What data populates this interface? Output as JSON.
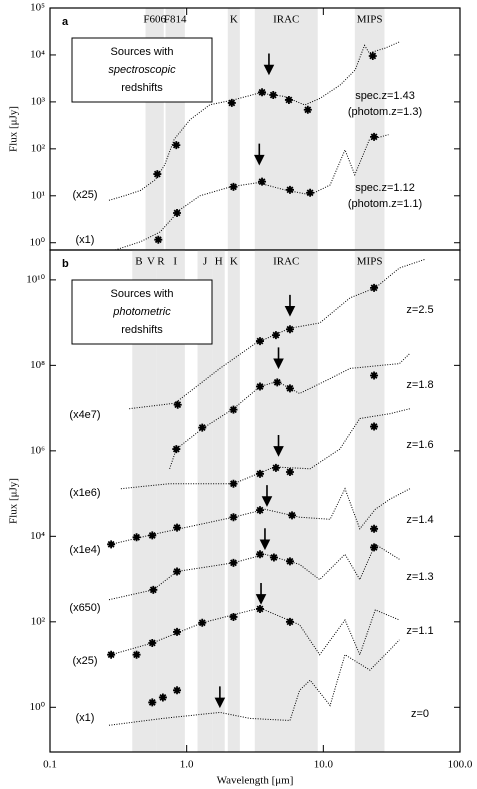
{
  "chart_data": [
    {
      "type": "line",
      "panel_label": "a",
      "box_text": [
        "Sources with",
        "spectroscopic",
        "redshifts"
      ],
      "log_x": true,
      "log_y": true,
      "xlim": [
        0.1,
        100
      ],
      "ylim": [
        0.7,
        100000
      ],
      "yticks": [
        {
          "value": 1,
          "label": "10⁰"
        },
        {
          "value": 10,
          "label": "10¹"
        },
        {
          "value": 100,
          "label": "10²"
        },
        {
          "value": 1000,
          "label": "10³"
        },
        {
          "value": 10000,
          "label": "10⁴"
        },
        {
          "value": 100000,
          "label": "10⁵"
        }
      ],
      "ylabel": "Flux [μJy]",
      "bands": [
        {
          "label": "F606",
          "range": [
            0.5,
            0.68
          ]
        },
        {
          "label": "F814",
          "range": [
            0.7,
            0.97
          ]
        },
        {
          "label": "K",
          "range": [
            2.0,
            2.45
          ]
        },
        {
          "label": "IRAC",
          "range": [
            3.15,
            9.1
          ]
        },
        {
          "label": "MIPS",
          "range": [
            17,
            28
          ]
        }
      ],
      "sources": [
        {
          "label": [
            "spec.z=1.43",
            "(photom.z=1.3)"
          ],
          "scale_label": "(x25)",
          "x": [
            0.61,
            0.84,
            2.14,
            3.56,
            4.3,
            5.6,
            7.7,
            23
          ],
          "y": [
            29,
            120,
            950,
            1600,
            1400,
            1100,
            680,
            9500
          ],
          "curve_x": [
            0.27,
            0.35,
            0.46,
            0.59,
            0.69,
            0.81,
            1.06,
            1.48,
            2.2,
            3.4,
            5.2,
            7.3,
            9.5,
            13.3,
            17.1,
            20,
            21.7,
            28.3,
            36
          ],
          "curve_y": [
            8,
            10,
            13,
            22,
            45,
            160,
            420,
            870,
            1100,
            1550,
            1300,
            860,
            1200,
            2300,
            4800,
            16000,
            11000,
            14000,
            19000
          ],
          "arrow": {
            "x": 4.0,
            "y": 3000
          }
        },
        {
          "label": [
            "spec.z=1.12",
            "(photom.z=1.1)"
          ],
          "scale_label": "(x1)",
          "x": [
            0.62,
            0.85,
            2.2,
            3.56,
            5.7,
            8.0,
            23.5
          ],
          "y": [
            1.16,
            4.3,
            15.5,
            20,
            13.4,
            11.6,
            180
          ],
          "curve_x": [
            0.3,
            0.46,
            0.64,
            0.89,
            1.25,
            2.1,
            3.3,
            5.2,
            8,
            11.2,
            14.4,
            17,
            21.7,
            30
          ],
          "curve_y": [
            0.7,
            1.05,
            1.7,
            5,
            10,
            15.5,
            19,
            13.4,
            10.5,
            17,
            95,
            28,
            155,
            200
          ],
          "arrow": {
            "x": 3.4,
            "y": 36
          }
        }
      ]
    },
    {
      "type": "line",
      "panel_label": "b",
      "box_text": [
        "Sources with",
        "photometric",
        "redshifts"
      ],
      "log_x": true,
      "log_y": true,
      "xlim": [
        0.1,
        100
      ],
      "ylim": [
        0.09,
        50000000000
      ],
      "xticks": [
        0.1,
        {
          "value": 1,
          "label": "1.0"
        },
        {
          "value": 10,
          "label": "10.0"
        },
        {
          "value": 100,
          "label": "100.0"
        }
      ],
      "yticks": [
        {
          "value": 1,
          "label": "10⁰"
        },
        {
          "value": 100,
          "label": "10²"
        },
        {
          "value": 10000,
          "label": "10⁴"
        },
        {
          "value": 1000000,
          "label": "10⁶"
        },
        {
          "value": 100000000,
          "label": "10⁸"
        },
        {
          "value": 10000000000,
          "label": "10¹⁰"
        }
      ],
      "ylabel": "Flux [μJy]",
      "xlabel": "Wavelength [μm]",
      "bands": [
        {
          "label": "B",
          "range": [
            0.4,
            0.5
          ]
        },
        {
          "label": "V",
          "range": [
            0.5,
            0.6
          ]
        },
        {
          "label": "R",
          "range": [
            0.6,
            0.7
          ]
        },
        {
          "label": "I",
          "range": [
            0.7,
            0.97
          ]
        },
        {
          "label": "J",
          "range": [
            1.2,
            1.55
          ]
        },
        {
          "label": "H",
          "range": [
            1.55,
            1.9
          ]
        },
        {
          "label": "K",
          "range": [
            2.0,
            2.45
          ]
        },
        {
          "label": "IRAC",
          "range": [
            3.15,
            9.1
          ]
        },
        {
          "label": "MIPS",
          "range": [
            17,
            28
          ]
        }
      ],
      "sources": [
        {
          "label": [
            "z=2.5"
          ],
          "x": [
            0.86,
            3.44,
            4.5,
            5.7,
            23.5
          ],
          "y": [
            12000000,
            370000000,
            510000000,
            700000000,
            6500000000
          ],
          "curve_x": [
            0.38,
            0.82,
            1.75,
            3.2,
            5.7,
            9.4,
            15.7,
            24,
            36,
            55
          ],
          "curve_y": [
            9700000,
            13000000,
            85000000,
            330000000,
            740000000,
            980000000,
            3800000000,
            6500000000,
            19000000000,
            30000000000
          ],
          "arrow": {
            "x": 5.7,
            "y": 1100000000
          }
        },
        {
          "label": [
            "z=1.8"
          ],
          "scale_label": "(x4e7)",
          "x": [
            0.84,
            1.3,
            2.2,
            3.44,
            4.6,
            5.7,
            23.5
          ],
          "y": [
            1100000,
            3500000,
            9200000,
            32000000,
            40000000,
            29000000,
            58000000
          ],
          "curve_x": [
            0.75,
            0.84,
            1.3,
            2.2,
            3.44,
            4.6,
            6.7,
            11.2,
            15.7,
            36,
            43
          ],
          "curve_y": [
            380000,
            1100000,
            3300000,
            9700000,
            32000000,
            42000000,
            22000000,
            49000000,
            85000000,
            110000000,
            190000000
          ],
          "arrow": {
            "x": 4.7,
            "y": 65000000
          }
        },
        {
          "label": [
            "z=1.6"
          ],
          "scale_label": "(x1e6)",
          "x": [
            2.2,
            3.44,
            4.5,
            5.7,
            23.5
          ],
          "y": [
            170000,
            290000,
            400000,
            320000,
            3700000
          ],
          "curve_x": [
            0.33,
            0.75,
            2.2,
            4.4,
            8.0,
            13.2,
            18.5,
            30.7,
            43
          ],
          "curve_y": [
            130000,
            170000,
            170000,
            420000,
            380000,
            1100000,
            5700000,
            7400000,
            9700000
          ],
          "arrow": {
            "x": 4.7,
            "y": 580000
          }
        },
        {
          "label": [
            "z=1.4"
          ],
          "scale_label": "(x1e4)",
          "x": [
            0.28,
            0.43,
            0.56,
            0.85,
            2.2,
            3.44,
            5.9,
            23.5
          ],
          "y": [
            6500,
            9500,
            10500,
            16000,
            28000,
            41000,
            31000,
            15000
          ],
          "curve_x": [
            0.28,
            0.56,
            2.2,
            3.74,
            6.7,
            11.2,
            14.4,
            18.5,
            24,
            30.7,
            43
          ],
          "curve_y": [
            6500,
            11000,
            28000,
            43000,
            28000,
            25000,
            130000,
            15000,
            43000,
            74000,
            130000
          ],
          "arrow": {
            "x": 3.87,
            "y": 39000
          }
        },
        {
          "label": [
            "z=1.3"
          ],
          "scale_label": "(x650)",
          "x": [
            0.57,
            0.85,
            2.2,
            3.44,
            4.35,
            5.7,
            23.5
          ],
          "y": [
            560,
            1500,
            2400,
            3800,
            3200,
            2600,
            5500
          ],
          "curve_x": [
            0.27,
            0.57,
            0.85,
            2.2,
            3.74,
            6.7,
            9.4,
            14.4,
            18.5,
            24,
            36
          ],
          "curve_y": [
            330,
            560,
            1500,
            2400,
            3800,
            2200,
            970,
            3800,
            970,
            6500,
            2900
          ],
          "arrow": {
            "x": 3.74,
            "y": 3800
          }
        },
        {
          "label": [
            "z=1.1"
          ],
          "scale_label": "(x25)",
          "x": [
            0.28,
            0.43,
            0.56,
            0.85,
            1.3,
            2.2,
            3.44,
            5.7
          ],
          "y": [
            17,
            17,
            32,
            58,
            95,
            130,
            200,
            100
          ],
          "curve_x": [
            0.28,
            0.56,
            1.3,
            3.44,
            6.7,
            9.4,
            14.4,
            18.5,
            24,
            36
          ],
          "curve_y": [
            17,
            32,
            95,
            210,
            85,
            17,
            110,
            17,
            190,
            110
          ],
          "arrow": {
            "x": 3.5,
            "y": 200
          }
        },
        {
          "label": [
            "z=0"
          ],
          "scale_label": "(x1)",
          "x": [
            0.56,
            0.67,
            0.85
          ],
          "y": [
            1.3,
            1.7,
            2.5
          ],
          "curve_x": [
            0.27,
            0.67,
            1.75,
            2.9,
            5.7,
            6.7,
            8.0,
            11.2,
            14.4,
            21.9,
            30.7,
            36
          ],
          "curve_y": [
            0.38,
            0.55,
            0.76,
            0.55,
            0.49,
            2.5,
            4.3,
            1.1,
            17,
            7.4,
            22,
            38
          ],
          "arrow": {
            "x": 1.75,
            "y": 0.76
          }
        }
      ]
    }
  ]
}
